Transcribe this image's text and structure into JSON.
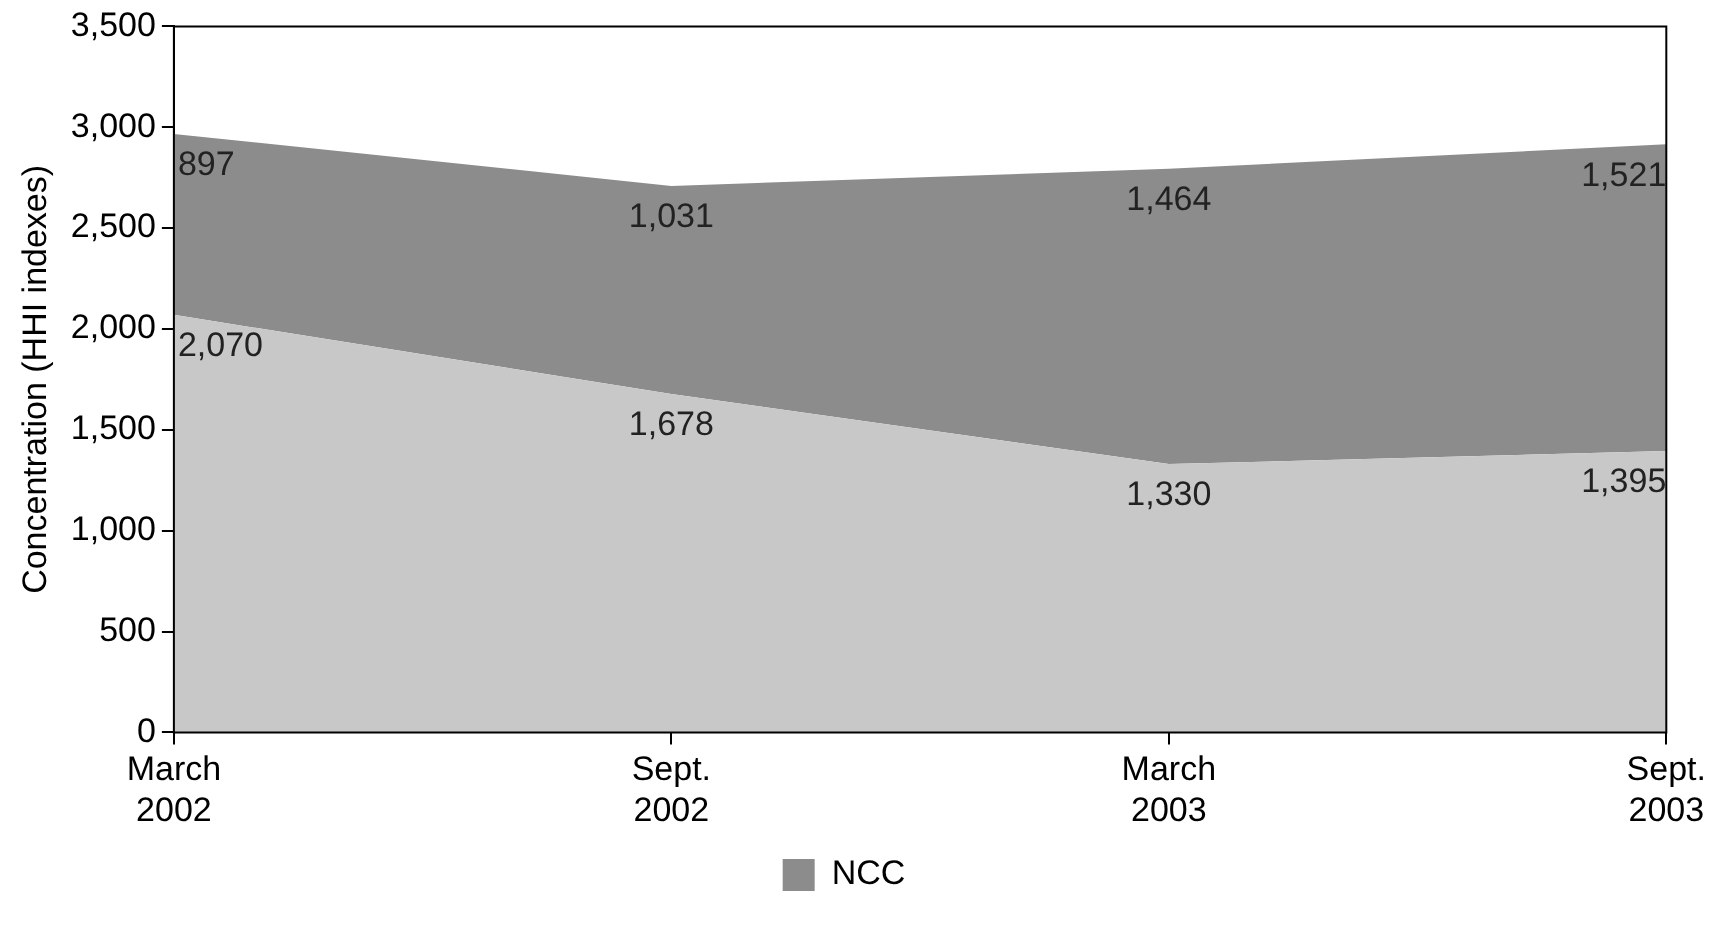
{
  "chart_data": {
    "type": "area",
    "stacked": true,
    "ylabel": "Concentration (HHI indexes)",
    "categories": [
      "March 2002",
      "Sept. 2002",
      "March 2003",
      "Sept. 2003"
    ],
    "series": [
      {
        "color": "#c8c8c8",
        "values": [
          2070,
          1678,
          1330,
          1395
        ],
        "value_labels": [
          "2,070",
          "1,678",
          "1,330",
          "1,395"
        ]
      },
      {
        "name": "NCC",
        "color": "#8c8c8c",
        "values": [
          897,
          1031,
          1464,
          1521
        ],
        "value_labels": [
          "897",
          "1,031",
          "1,464",
          "1,521"
        ]
      }
    ],
    "ylim": [
      0,
      3500
    ],
    "yticks": [
      {
        "value": 0,
        "label": "0"
      },
      {
        "value": 500,
        "label": "500"
      },
      {
        "value": 1000,
        "label": "1,000"
      },
      {
        "value": 1500,
        "label": "1,500"
      },
      {
        "value": 2000,
        "label": "2,000"
      },
      {
        "value": 2500,
        "label": "2,500"
      },
      {
        "value": 3000,
        "label": "3,000"
      },
      {
        "value": 3500,
        "label": "3,500"
      }
    ],
    "grid": false,
    "legend": "bottom"
  }
}
